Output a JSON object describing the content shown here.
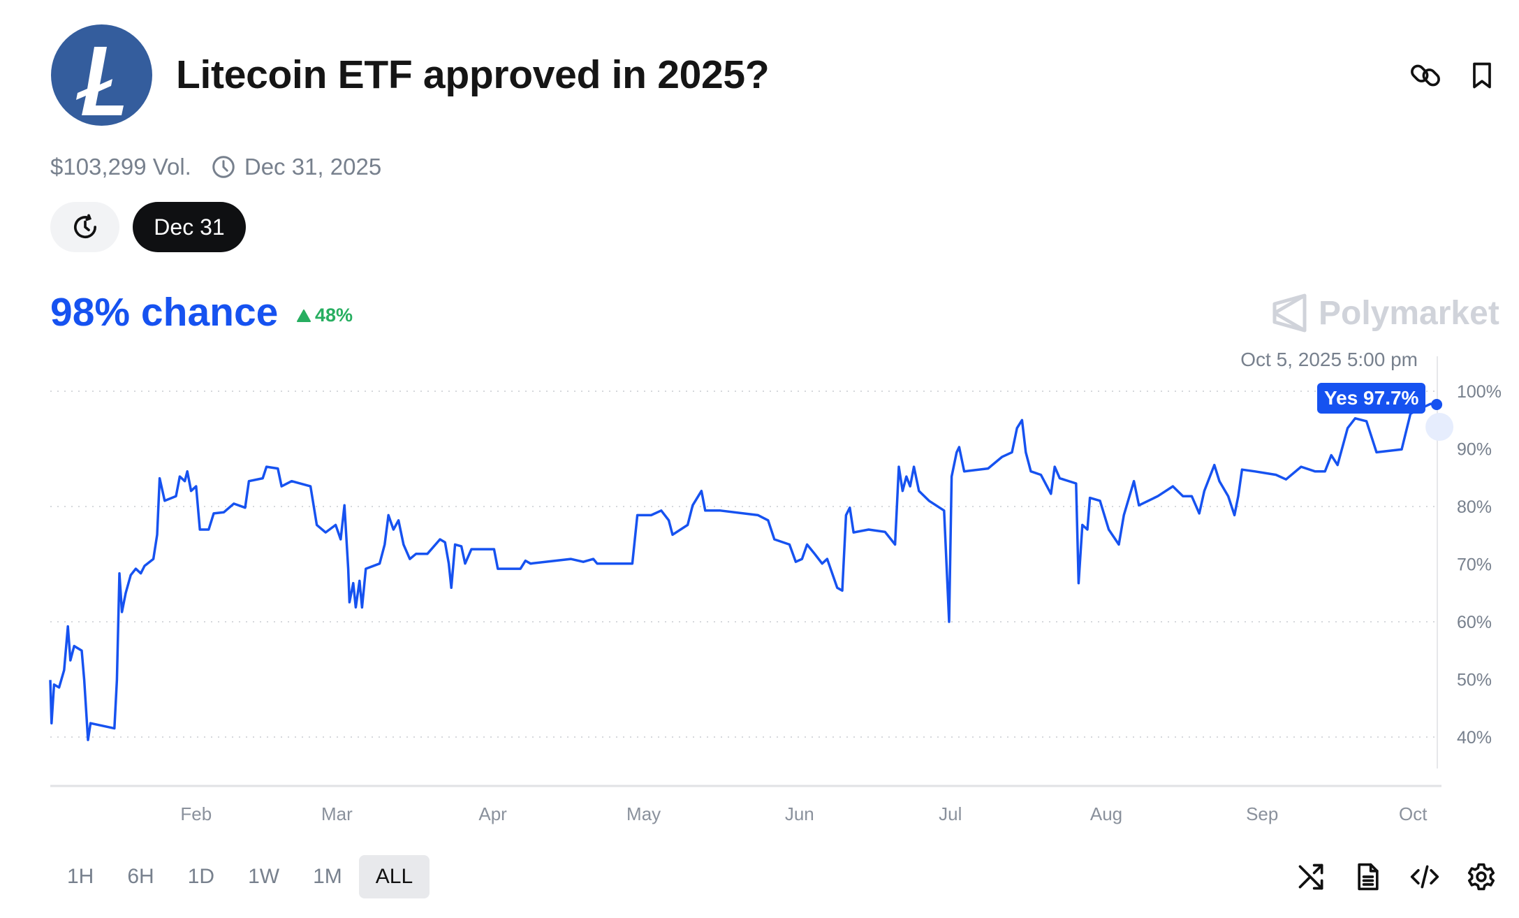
{
  "header": {
    "title": "Litecoin ETF approved in 2025?",
    "logo_icon": "litecoin-logo",
    "actions": [
      {
        "icon": "link-icon"
      },
      {
        "icon": "bookmark-icon"
      }
    ]
  },
  "meta": {
    "volume": "$103,299 Vol.",
    "end_date": "Dec 31, 2025"
  },
  "date_selector": {
    "history_icon": "clock-history-icon",
    "selected": "Dec 31"
  },
  "summary": {
    "chance": "98% chance",
    "change": "48%",
    "change_direction": "up",
    "accent_color": "#1652f0",
    "change_color": "#27ae60"
  },
  "watermark": {
    "text": "Polymarket"
  },
  "hover": {
    "timestamp": "Oct 5, 2025 5:00 pm",
    "tooltip": "Yes 97.7%"
  },
  "chart_data": {
    "type": "line",
    "series": [
      {
        "name": "Yes",
        "color": "#1652f0",
        "points": [
          [
            "2025-01-03T00:00",
            49.9
          ],
          [
            "2025-01-03T06:00",
            42.4
          ],
          [
            "2025-01-03T18:00",
            49.1
          ],
          [
            "2025-01-04T18:00",
            48.6
          ],
          [
            "2025-01-05T18:00",
            51.6
          ],
          [
            "2025-01-06T12:00",
            59.2
          ],
          [
            "2025-01-07T00:00",
            53.3
          ],
          [
            "2025-01-07T18:00",
            55.8
          ],
          [
            "2025-01-09T06:00",
            55.0
          ],
          [
            "2025-01-09T18:00",
            49.9
          ],
          [
            "2025-01-10T12:00",
            39.5
          ],
          [
            "2025-01-11T00:00",
            42.4
          ],
          [
            "2025-01-15T18:00",
            41.5
          ],
          [
            "2025-01-16T06:00",
            49.9
          ],
          [
            "2025-01-16T18:00",
            68.4
          ],
          [
            "2025-01-17T06:00",
            61.7
          ],
          [
            "2025-01-18T00:00",
            65.0
          ],
          [
            "2025-01-19T00:00",
            68.1
          ],
          [
            "2025-01-20T00:00",
            69.2
          ],
          [
            "2025-01-21T00:00",
            68.4
          ],
          [
            "2025-01-21T18:00",
            69.7
          ],
          [
            "2025-01-23T12:00",
            70.9
          ],
          [
            "2025-01-24T06:00",
            75.1
          ],
          [
            "2025-01-24T18:00",
            84.9
          ],
          [
            "2025-01-25T18:00",
            81.0
          ],
          [
            "2025-01-28T00:00",
            81.8
          ],
          [
            "2025-01-28T18:00",
            85.2
          ],
          [
            "2025-01-29T18:00",
            84.4
          ],
          [
            "2025-01-30T06:00",
            86.1
          ],
          [
            "2025-01-31T00:00",
            82.7
          ],
          [
            "2025-02-01T00:00",
            83.5
          ],
          [
            "2025-02-01T18:00",
            76.0
          ],
          [
            "2025-02-03T12:00",
            76.0
          ],
          [
            "2025-02-04T12:00",
            78.8
          ],
          [
            "2025-02-06T12:00",
            79.0
          ],
          [
            "2025-02-08T12:00",
            80.5
          ],
          [
            "2025-02-10T18:00",
            79.8
          ],
          [
            "2025-02-11T12:00",
            84.4
          ],
          [
            "2025-02-14T06:00",
            84.9
          ],
          [
            "2025-02-15T00:00",
            86.9
          ],
          [
            "2025-02-17T06:00",
            86.6
          ],
          [
            "2025-02-18T00:00",
            83.5
          ],
          [
            "2025-02-20T00:00",
            84.4
          ],
          [
            "2025-02-23T18:00",
            83.5
          ],
          [
            "2025-02-25T00:00",
            76.8
          ],
          [
            "2025-02-26T18:00",
            75.5
          ],
          [
            "2025-02-28T18:00",
            76.8
          ],
          [
            "2025-03-01T18:00",
            74.3
          ],
          [
            "2025-03-02T12:00",
            80.2
          ],
          [
            "2025-03-03T06:00",
            69.2
          ],
          [
            "2025-03-03T12:00",
            63.4
          ],
          [
            "2025-03-04T06:00",
            66.7
          ],
          [
            "2025-03-04T18:00",
            62.5
          ],
          [
            "2025-03-05T12:00",
            67.1
          ],
          [
            "2025-03-06T00:00",
            62.5
          ],
          [
            "2025-03-06T18:00",
            69.2
          ],
          [
            "2025-03-09T12:00",
            70.1
          ],
          [
            "2025-03-10T12:00",
            73.4
          ],
          [
            "2025-03-11T06:00",
            78.5
          ],
          [
            "2025-03-12T06:00",
            76.0
          ],
          [
            "2025-03-13T06:00",
            77.6
          ],
          [
            "2025-03-14T06:00",
            73.4
          ],
          [
            "2025-03-15T12:00",
            70.9
          ],
          [
            "2025-03-16T18:00",
            71.8
          ],
          [
            "2025-03-19T00:00",
            71.8
          ],
          [
            "2025-03-21T12:00",
            74.3
          ],
          [
            "2025-03-22T12:00",
            73.8
          ],
          [
            "2025-03-23T06:00",
            70.1
          ],
          [
            "2025-03-23T18:00",
            65.9
          ],
          [
            "2025-03-24T12:00",
            73.4
          ],
          [
            "2025-03-25T18:00",
            73.1
          ],
          [
            "2025-03-26T12:00",
            70.1
          ],
          [
            "2025-03-27T18:00",
            72.6
          ],
          [
            "2025-04-01T06:00",
            72.6
          ],
          [
            "2025-04-02T00:00",
            69.2
          ],
          [
            "2025-04-06T12:00",
            69.2
          ],
          [
            "2025-04-07T12:00",
            70.6
          ],
          [
            "2025-04-08T12:00",
            70.1
          ],
          [
            "2025-04-16T12:00",
            70.9
          ],
          [
            "2025-04-19T00:00",
            70.4
          ],
          [
            "2025-04-21T00:00",
            70.9
          ],
          [
            "2025-04-21T18:00",
            70.1
          ],
          [
            "2025-04-28T18:00",
            70.1
          ],
          [
            "2025-04-29T18:00",
            78.5
          ],
          [
            "2025-05-02T12:00",
            78.5
          ],
          [
            "2025-05-04T12:00",
            79.3
          ],
          [
            "2025-05-06T00:00",
            77.6
          ],
          [
            "2025-05-06T18:00",
            75.1
          ],
          [
            "2025-05-09T18:00",
            76.8
          ],
          [
            "2025-05-10T18:00",
            80.2
          ],
          [
            "2025-05-12T12:00",
            82.7
          ],
          [
            "2025-05-13T06:00",
            79.3
          ],
          [
            "2025-05-16T06:00",
            79.3
          ],
          [
            "2025-05-23T18:00",
            78.5
          ],
          [
            "2025-05-25T18:00",
            77.6
          ],
          [
            "2025-05-27T00:00",
            74.3
          ],
          [
            "2025-05-30T00:00",
            73.4
          ],
          [
            "2025-05-31T06:00",
            70.4
          ],
          [
            "2025-06-01T12:00",
            70.9
          ],
          [
            "2025-06-02T12:00",
            73.4
          ],
          [
            "2025-06-04T00:00",
            71.8
          ],
          [
            "2025-06-05T12:00",
            70.1
          ],
          [
            "2025-06-06T12:00",
            70.9
          ],
          [
            "2025-06-07T12:00",
            68.4
          ],
          [
            "2025-06-08T12:00",
            65.9
          ],
          [
            "2025-06-09T12:00",
            65.4
          ],
          [
            "2025-06-10T06:00",
            78.5
          ],
          [
            "2025-06-11T00:00",
            79.8
          ],
          [
            "2025-06-11T18:00",
            75.5
          ],
          [
            "2025-06-14T18:00",
            76.0
          ],
          [
            "2025-06-18T00:00",
            75.6
          ],
          [
            "2025-06-20T00:00",
            73.4
          ],
          [
            "2025-06-20T18:00",
            86.9
          ],
          [
            "2025-06-21T12:00",
            82.7
          ],
          [
            "2025-06-22T06:00",
            85.2
          ],
          [
            "2025-06-23T00:00",
            83.5
          ],
          [
            "2025-06-23T18:00",
            86.9
          ],
          [
            "2025-06-24T18:00",
            82.7
          ],
          [
            "2025-06-26T18:00",
            81.0
          ],
          [
            "2025-06-29T18:00",
            79.3
          ],
          [
            "2025-06-30T18:00",
            60.0
          ],
          [
            "2025-07-01T06:00",
            85.2
          ],
          [
            "2025-07-02T06:00",
            89.4
          ],
          [
            "2025-07-02T18:00",
            90.3
          ],
          [
            "2025-07-03T18:00",
            86.1
          ],
          [
            "2025-07-08T12:00",
            86.6
          ],
          [
            "2025-07-11T06:00",
            88.6
          ],
          [
            "2025-07-13T06:00",
            89.4
          ],
          [
            "2025-07-14T06:00",
            93.6
          ],
          [
            "2025-07-15T06:00",
            95.0
          ],
          [
            "2025-07-16T00:00",
            89.4
          ],
          [
            "2025-07-17T00:00",
            86.1
          ],
          [
            "2025-07-19T00:00",
            85.5
          ],
          [
            "2025-07-21T00:00",
            82.2
          ],
          [
            "2025-07-21T18:00",
            86.9
          ],
          [
            "2025-07-22T18:00",
            84.9
          ],
          [
            "2025-07-26T00:00",
            84.0
          ],
          [
            "2025-07-26T12:00",
            66.7
          ],
          [
            "2025-07-27T06:00",
            76.8
          ],
          [
            "2025-07-28T06:00",
            76.0
          ],
          [
            "2025-07-28T18:00",
            81.5
          ],
          [
            "2025-07-30T18:00",
            81.0
          ],
          [
            "2025-08-01T12:00",
            76.0
          ],
          [
            "2025-08-03T12:00",
            73.4
          ],
          [
            "2025-08-04T12:00",
            78.5
          ],
          [
            "2025-08-06T12:00",
            84.4
          ],
          [
            "2025-08-07T12:00",
            80.2
          ],
          [
            "2025-08-11T06:00",
            81.8
          ],
          [
            "2025-08-14T06:00",
            83.5
          ],
          [
            "2025-08-16T06:00",
            81.8
          ],
          [
            "2025-08-18T00:00",
            81.8
          ],
          [
            "2025-08-19T12:00",
            78.8
          ],
          [
            "2025-08-20T12:00",
            82.7
          ],
          [
            "2025-08-22T12:00",
            87.2
          ],
          [
            "2025-08-23T12:00",
            84.4
          ],
          [
            "2025-08-25T06:00",
            81.8
          ],
          [
            "2025-08-26T12:00",
            78.5
          ],
          [
            "2025-08-27T06:00",
            81.8
          ],
          [
            "2025-08-28T00:00",
            86.4
          ],
          [
            "2025-08-30T12:00",
            86.1
          ],
          [
            "2025-09-03T18:00",
            85.5
          ],
          [
            "2025-09-05T18:00",
            84.7
          ],
          [
            "2025-09-08T18:00",
            86.9
          ],
          [
            "2025-09-11T12:00",
            86.1
          ],
          [
            "2025-09-13T12:00",
            86.1
          ],
          [
            "2025-09-14T18:00",
            88.9
          ],
          [
            "2025-09-16T00:00",
            87.2
          ],
          [
            "2025-09-18T00:00",
            93.6
          ],
          [
            "2025-09-19T12:00",
            95.3
          ],
          [
            "2025-09-21T18:00",
            94.8
          ],
          [
            "2025-09-23T18:00",
            89.4
          ],
          [
            "2025-09-28T18:00",
            89.9
          ],
          [
            "2025-09-30T12:00",
            96.1
          ],
          [
            "2025-10-02T12:00",
            97.0
          ],
          [
            "2025-10-04T12:00",
            97.8
          ],
          [
            "2025-10-05T17:00",
            97.7
          ]
        ]
      }
    ],
    "x_ticks": [
      {
        "label": "Feb",
        "date": "2025-02-01"
      },
      {
        "label": "Mar",
        "date": "2025-03-01"
      },
      {
        "label": "Apr",
        "date": "2025-04-01"
      },
      {
        "label": "May",
        "date": "2025-05-01"
      },
      {
        "label": "Jun",
        "date": "2025-06-01"
      },
      {
        "label": "Jul",
        "date": "2025-07-01"
      },
      {
        "label": "Aug",
        "date": "2025-08-01"
      },
      {
        "label": "Sep",
        "date": "2025-09-01"
      },
      {
        "label": "Oct",
        "date": "2025-10-01"
      }
    ],
    "y_ticks": [
      {
        "label": "100%",
        "value": 100
      },
      {
        "label": "90%",
        "value": 90
      },
      {
        "label": "80%",
        "value": 80
      },
      {
        "label": "70%",
        "value": 70
      },
      {
        "label": "60%",
        "value": 60
      },
      {
        "label": "50%",
        "value": 50
      },
      {
        "label": "40%",
        "value": 40
      }
    ],
    "gridlines": [
      100,
      80,
      60,
      40
    ],
    "xlim": [
      "2025-01-03T00:00",
      "2025-10-05T17:00"
    ],
    "ylim": [
      40,
      100
    ],
    "y_axis_position": "right"
  },
  "ranges": {
    "items": [
      "1H",
      "6H",
      "1D",
      "1W",
      "1M",
      "ALL"
    ],
    "active": "ALL"
  },
  "footer_actions": [
    {
      "icon": "shuffle-icon"
    },
    {
      "icon": "document-icon"
    },
    {
      "icon": "code-embed-icon"
    },
    {
      "icon": "settings-gear-icon"
    }
  ]
}
